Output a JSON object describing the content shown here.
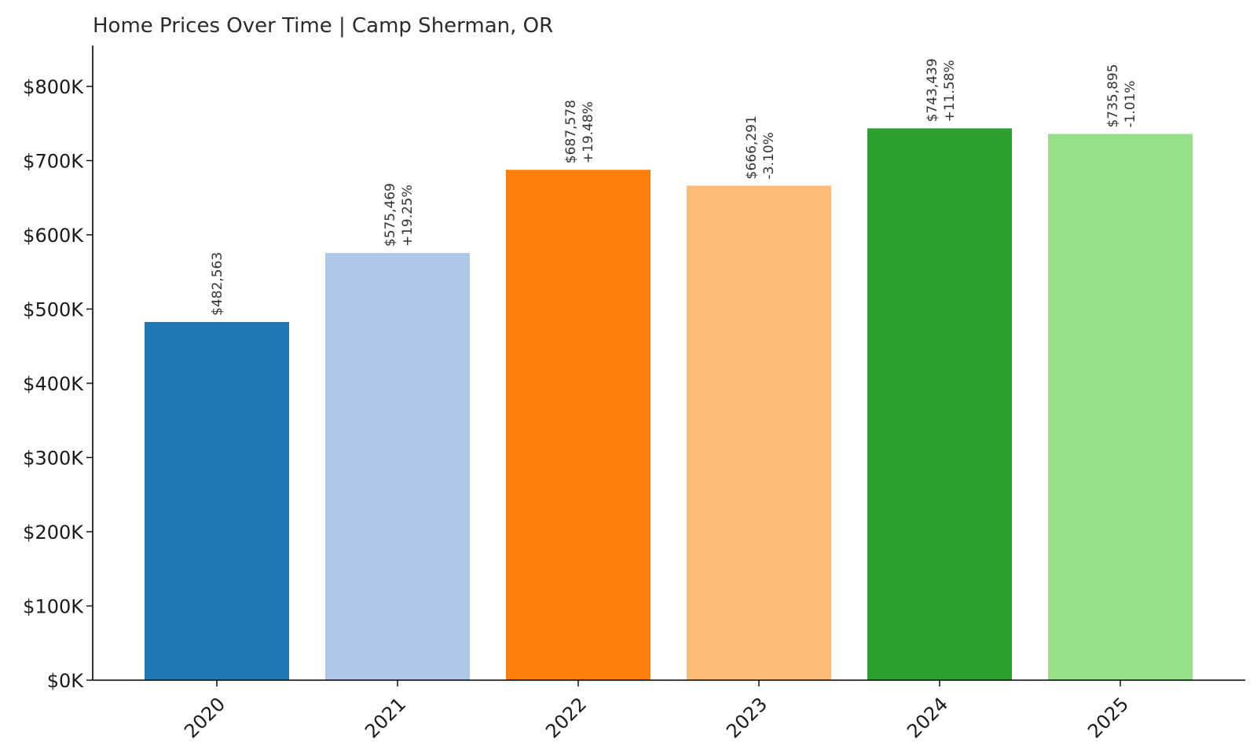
{
  "chart_data": {
    "type": "bar",
    "title": "Home Prices Over Time | Camp Sherman, OR",
    "xlabel": "",
    "ylabel": "",
    "categories": [
      "2020",
      "2021",
      "2022",
      "2023",
      "2024",
      "2025"
    ],
    "values": [
      482563,
      575469,
      687578,
      666291,
      743439,
      735895
    ],
    "value_labels": [
      "$482,563",
      "$575,469",
      "$687,578",
      "$666,291",
      "$743,439",
      "$735,895"
    ],
    "change_labels": [
      "",
      "+19.25%",
      "+19.48%",
      "-3.10%",
      "+11.58%",
      "-1.01%"
    ],
    "bar_colors": [
      "#1f77b4",
      "#aec7e8",
      "#ff7f0e",
      "#ffbb78",
      "#2ca02c",
      "#98df8a"
    ],
    "ylim": [
      0,
      855000
    ],
    "yticks": [
      0,
      100000,
      200000,
      300000,
      400000,
      500000,
      600000,
      700000,
      800000
    ],
    "ytick_labels": [
      "$0K",
      "$100K",
      "$200K",
      "$300K",
      "$400K",
      "$500K",
      "$600K",
      "$700K",
      "$800K"
    ],
    "grid": false,
    "legend": "none"
  }
}
